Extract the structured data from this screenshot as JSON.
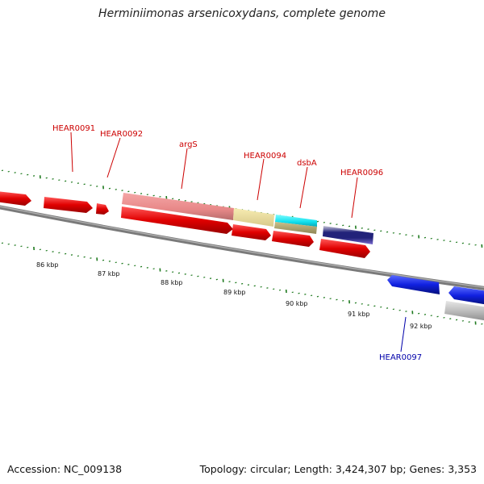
{
  "title": "Herminiimonas arsenicoxydans, complete genome",
  "footer": {
    "accession": "Accession: NC_009138",
    "stats": "Topology: circular; Length: 3,424,307 bp; Genes: 3,353"
  },
  "colors": {
    "backbone": "#7a7a7a",
    "tick": "#1f7a1f",
    "forward_gene": "#dd0000",
    "reverse_gene": "#0a17dd",
    "label_forward": "#cc0000",
    "label_reverse": "#0000aa"
  },
  "kbp_labels": [
    "86 kbp",
    "87 kbp",
    "88 kbp",
    "89 kbp",
    "90 kbp",
    "91 kbp",
    "92 kbp"
  ],
  "gene_labels": [
    {
      "text": "HEAR0091",
      "color": "#cc0000"
    },
    {
      "text": "HEAR0092",
      "color": "#cc0000"
    },
    {
      "text": "argS",
      "color": "#cc0000"
    },
    {
      "text": "HEAR0094",
      "color": "#cc0000"
    },
    {
      "text": "dsbA",
      "color": "#cc0000"
    },
    {
      "text": "HEAR0096",
      "color": "#cc0000"
    },
    {
      "text": "HEAR0097",
      "color": "#0000aa"
    }
  ]
}
